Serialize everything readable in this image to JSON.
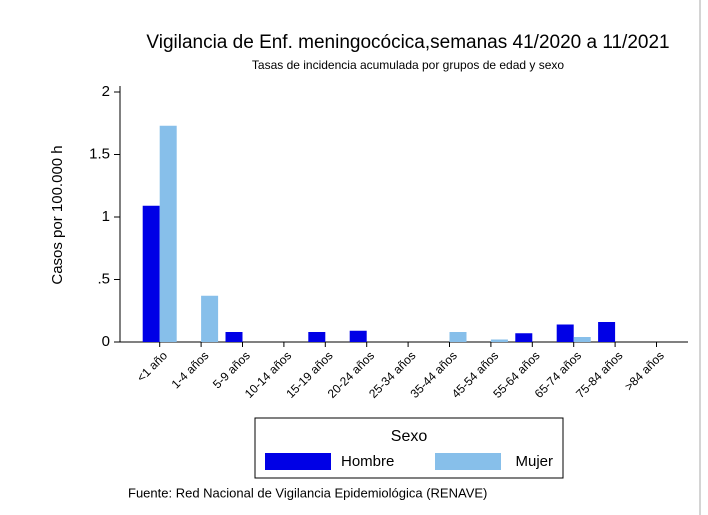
{
  "chart_data": {
    "type": "bar",
    "title": "Vigilancia de Enf. meningocócica,semanas 41/2020 a 11/2021",
    "subtitle": "Tasas de incidencia acumulada por grupos de edad y sexo",
    "y_label": "Casos por 100.000 h",
    "categories": [
      "<1 año",
      "1-4 años",
      "5-9 años",
      "10-14 años",
      "15-19 años",
      "20-24 años",
      "25-34 años",
      "35-44 años",
      "45-54 años",
      "55-64 años",
      "65-74 años",
      "75-84 años",
      ">84 años"
    ],
    "series": [
      {
        "name": "Hombre",
        "color": "#0000e6",
        "values": [
          1.09,
          0,
          0.08,
          0,
          0.08,
          0.09,
          0,
          0,
          0,
          0.07,
          0.14,
          0.16,
          0
        ]
      },
      {
        "name": "Mujer",
        "color": "#87bfea",
        "values": [
          1.73,
          0.37,
          0,
          0,
          0,
          0,
          0,
          0.08,
          0.02,
          0,
          0.04,
          0,
          0
        ]
      }
    ],
    "ylim": [
      0,
      2
    ],
    "yticks": [
      0,
      {
        "value": 0.5,
        "label": ".5"
      },
      1,
      1.5,
      2
    ],
    "legend_title": "Sexo",
    "source": "Fuente: Red Nacional de Vigilancia Epidemiológica (RENAVE)"
  }
}
